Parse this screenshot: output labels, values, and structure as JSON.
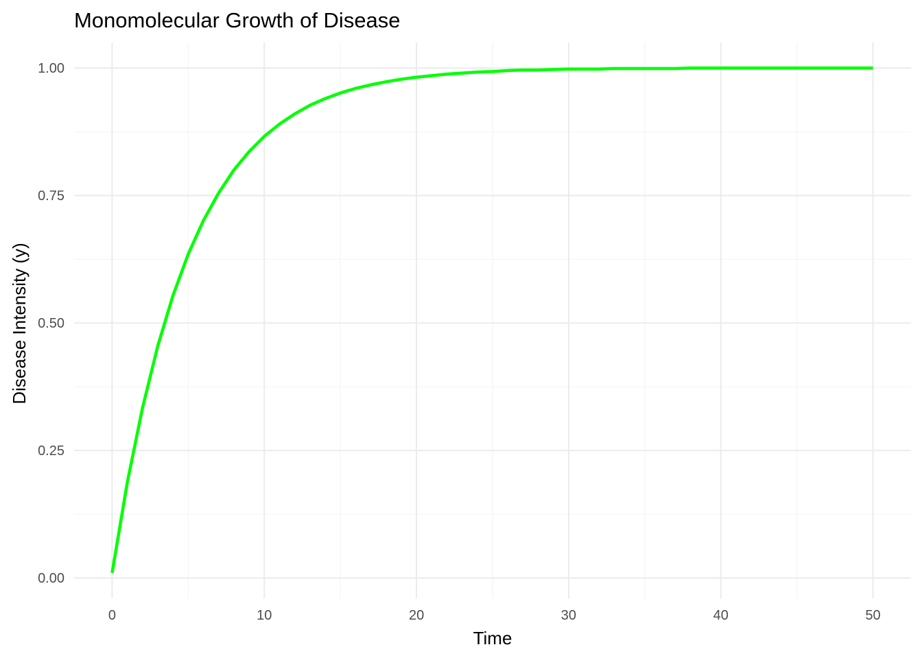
{
  "chart_data": {
    "type": "line",
    "title": "Monomolecular Growth of Disease",
    "xlabel": "Time",
    "ylabel": "Disease Intensity (y)",
    "xlim": [
      -2.5,
      52.5
    ],
    "ylim": [
      -0.04,
      1.05
    ],
    "x_ticks": [
      0,
      10,
      20,
      30,
      40,
      50
    ],
    "x_tick_labels": [
      "0",
      "10",
      "20",
      "30",
      "40",
      "50"
    ],
    "y_ticks": [
      0,
      0.25,
      0.5,
      0.75,
      1.0
    ],
    "y_tick_labels": [
      "0.00",
      "0.25",
      "0.50",
      "0.75",
      "1.00"
    ],
    "grid": true,
    "legend": "none",
    "series": [
      {
        "color": "#00ff00",
        "x": [
          0,
          1,
          2,
          3,
          4,
          5,
          6,
          7,
          8,
          9,
          10,
          11,
          12,
          13,
          14,
          15,
          16,
          17,
          18,
          19,
          20,
          21,
          22,
          23,
          24,
          25,
          26,
          27,
          28,
          29,
          30,
          31,
          32,
          33,
          34,
          35,
          36,
          37,
          38,
          39,
          40,
          41,
          42,
          43,
          44,
          45,
          46,
          47,
          48,
          49,
          50
        ],
        "y": [
          0.01,
          0.188,
          0.334,
          0.455,
          0.554,
          0.635,
          0.701,
          0.755,
          0.8,
          0.836,
          0.866,
          0.89,
          0.91,
          0.927,
          0.94,
          0.951,
          0.96,
          0.967,
          0.973,
          0.978,
          0.982,
          0.985,
          0.988,
          0.99,
          0.992,
          0.993,
          0.995,
          0.996,
          0.996,
          0.997,
          0.998,
          0.998,
          0.998,
          0.999,
          0.999,
          0.999,
          0.999,
          0.999,
          1.0,
          1.0,
          1.0,
          1.0,
          1.0,
          1.0,
          1.0,
          1.0,
          1.0,
          1.0,
          1.0,
          1.0,
          1.0
        ]
      }
    ]
  }
}
